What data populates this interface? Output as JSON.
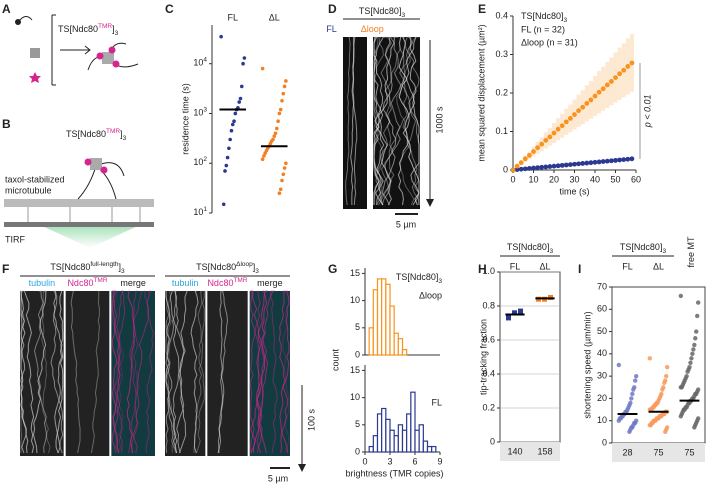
{
  "panel_labels": [
    "A",
    "B",
    "C",
    "D",
    "E",
    "F",
    "G",
    "H",
    "I"
  ],
  "A": {
    "label": [
      {
        "t": "TS[Ndc80"
      },
      {
        "t": "TMR",
        "pos": "sup",
        "color": "#d6248f"
      },
      {
        "t": "]"
      },
      {
        "t": "3",
        "pos": "sub"
      }
    ]
  },
  "B": {
    "label": [
      {
        "t": "TS[Ndc80"
      },
      {
        "t": "TMR",
        "pos": "sup",
        "color": "#d6248f"
      },
      {
        "t": "]"
      },
      {
        "t": "3",
        "pos": "sub"
      }
    ],
    "texts": [
      "taxol-stabilized",
      "microtubule",
      "TIRF"
    ]
  },
  "D": {
    "header": [
      {
        "t": "TS[Ndc80]"
      },
      {
        "t": "3",
        "pos": "sub"
      }
    ],
    "lanes": [
      {
        "t": "FL",
        "color": "#2b3990"
      },
      {
        "t": "Δloop",
        "color": "#f47f20"
      }
    ],
    "time_bar": "1000 s",
    "scale_bar": "5 µm"
  },
  "F": {
    "headers": [
      [
        {
          "t": "TS[Ndc80"
        },
        {
          "t": "full-length",
          "pos": "sup"
        },
        {
          "t": "]"
        },
        {
          "t": "3",
          "pos": "sub"
        }
      ],
      [
        {
          "t": "TS[Ndc80"
        },
        {
          "t": "Δloop",
          "pos": "sup"
        },
        {
          "t": "]"
        },
        {
          "t": "3",
          "pos": "sub"
        }
      ]
    ],
    "channels": [
      [
        {
          "t": "tubulin",
          "color": "#2aa7d8"
        }
      ],
      [
        {
          "t": "Ndc80",
          "color": "#d6248f"
        },
        {
          "t": "TMR",
          "pos": "sup",
          "color": "#d6248f"
        }
      ],
      [
        {
          "t": "merge"
        }
      ]
    ],
    "time_bar": "100 s",
    "scale_bar": "5 µm"
  },
  "chart_data": [
    {
      "type": "strip",
      "ylabel": "residence time (s)",
      "log": true,
      "ylim": [
        10,
        60000
      ],
      "yticks": [
        {
          "value": 10,
          "label": "10",
          "exp": "1"
        },
        {
          "value": 100,
          "label": "10",
          "exp": "2"
        },
        {
          "value": 1000,
          "label": "10",
          "exp": "3"
        },
        {
          "value": 10000,
          "label": "10",
          "exp": "4"
        }
      ],
      "series": [
        {
          "name": "FL",
          "color": "#2b3990",
          "median": 1200,
          "values": [
            35000,
            13000,
            10000,
            3500,
            2000,
            1700,
            1300,
            1200,
            1000,
            700,
            600,
            450,
            300,
            200,
            130,
            90,
            70,
            15
          ]
        },
        {
          "name": "ΔL",
          "color": "#f47f20",
          "median": 220,
          "values": [
            8000,
            4500,
            3500,
            2500,
            1800,
            1200,
            1000,
            700,
            500,
            400,
            350,
            300,
            280,
            250,
            220,
            200,
            180,
            160,
            140,
            120,
            100,
            80,
            60,
            45,
            30,
            25
          ]
        }
      ]
    },
    {
      "type": "line",
      "xlabel": "time (s)",
      "ylabel": "mean squared displacement (µm²)",
      "legend_title": [
        {
          "t": "TS[Ndc80]"
        },
        {
          "t": "3",
          "pos": "sub"
        }
      ],
      "annotation": "p < 0.01",
      "xlim": [
        0,
        60
      ],
      "xticks": [
        0,
        10,
        20,
        30,
        40,
        50,
        60
      ],
      "ylim": [
        0,
        0.4
      ],
      "yticks": [
        0,
        0.1,
        0.2,
        0.3,
        0.4
      ],
      "x": [
        0,
        2,
        4,
        6,
        8,
        10,
        12,
        14,
        16,
        18,
        20,
        22,
        24,
        26,
        28,
        30,
        32,
        34,
        36,
        38,
        40,
        42,
        44,
        46,
        48,
        50,
        52,
        54,
        56,
        58
      ],
      "series": [
        {
          "name": "FL (n = 32)",
          "color": "#2b3990",
          "values": [
            0,
            0.001,
            0.002,
            0.003,
            0.004,
            0.005,
            0.006,
            0.007,
            0.008,
            0.009,
            0.01,
            0.011,
            0.012,
            0.013,
            0.014,
            0.015,
            0.016,
            0.017,
            0.018,
            0.019,
            0.02,
            0.021,
            0.022,
            0.023,
            0.024,
            0.025,
            0.026,
            0.027,
            0.028,
            0.029
          ]
        },
        {
          "name": "Δloop (n = 31)",
          "color": "#f7931e",
          "values": [
            0,
            0.01,
            0.019,
            0.029,
            0.038,
            0.048,
            0.058,
            0.067,
            0.077,
            0.086,
            0.096,
            0.106,
            0.115,
            0.125,
            0.134,
            0.144,
            0.154,
            0.163,
            0.173,
            0.182,
            0.192,
            0.202,
            0.211,
            0.221,
            0.23,
            0.24,
            0.25,
            0.259,
            0.269,
            0.278
          ],
          "error": [
            0,
            0.003,
            0.005,
            0.008,
            0.01,
            0.013,
            0.016,
            0.018,
            0.021,
            0.023,
            0.026,
            0.029,
            0.031,
            0.034,
            0.036,
            0.039,
            0.042,
            0.044,
            0.047,
            0.049,
            0.052,
            0.055,
            0.057,
            0.06,
            0.062,
            0.065,
            0.068,
            0.07,
            0.073,
            0.075
          ]
        }
      ]
    },
    {
      "type": "histogram",
      "header": [
        {
          "t": "TS[Ndc80]"
        },
        {
          "t": "3",
          "pos": "sub"
        }
      ],
      "name": "Δloop",
      "color": "#f7931e",
      "bins": [
        0.5,
        1,
        1.5,
        2,
        2.5,
        3,
        3.5,
        4,
        4.5,
        5,
        5.5,
        6,
        6.5,
        7,
        7.5,
        8,
        8.5
      ],
      "counts": [
        5,
        12,
        14,
        14,
        13,
        9,
        4,
        3,
        1,
        0,
        0,
        0,
        0,
        0,
        0,
        0
      ],
      "xlim": [
        0,
        9
      ],
      "ylim": [
        0,
        16
      ],
      "yticks": [
        0,
        5,
        10,
        15
      ]
    },
    {
      "type": "histogram",
      "name": "FL",
      "color": "#2b3990",
      "ylabel": "count",
      "xlabel": "brightness (TMR copies)",
      "bins": [
        0.5,
        1,
        1.5,
        2,
        2.5,
        3,
        3.5,
        4,
        4.5,
        5,
        5.5,
        6,
        6.5,
        7,
        7.5,
        8,
        8.5
      ],
      "counts": [
        1,
        3,
        7,
        8,
        6,
        4,
        3,
        5,
        4,
        7,
        11,
        4,
        5,
        2,
        1,
        1
      ],
      "xlim": [
        0,
        9
      ],
      "xticks": [
        0,
        3,
        6,
        9
      ],
      "ylim": [
        0,
        16
      ],
      "yticks": [
        0,
        5,
        10,
        15
      ]
    },
    {
      "type": "strip",
      "header": [
        {
          "t": "TS[Ndc80]"
        },
        {
          "t": "3",
          "pos": "sub"
        }
      ],
      "ylabel": "tip-tracking fraction",
      "frame": true,
      "grid": true,
      "ylim": [
        0,
        1
      ],
      "yticks": [
        0,
        0.2,
        0.4,
        0.6,
        0.8,
        {
          "value": 1,
          "label": "1.0"
        }
      ],
      "n": [
        140,
        158
      ],
      "series": [
        {
          "name": "FL",
          "color": "#2b3990",
          "median": 0.75,
          "values": [
            0.73,
            0.76,
            0.77
          ]
        },
        {
          "name": "ΔL",
          "color": "#f47f20",
          "median": 0.845,
          "values": [
            0.84,
            0.84,
            0.85
          ]
        }
      ]
    },
    {
      "type": "strip",
      "header": [
        {
          "t": "TS[Ndc80]"
        },
        {
          "t": "3",
          "pos": "sub"
        }
      ],
      "ylabel": "shortening speed (µm/min)",
      "frame": true,
      "ylim": [
        0,
        70
      ],
      "yticks": [
        0,
        10,
        20,
        30,
        40,
        50,
        60,
        70
      ],
      "n": [
        28,
        75,
        75
      ],
      "series": [
        {
          "name": "FL",
          "color": "#6f79c2",
          "median": 13,
          "values": [
            35,
            30,
            28,
            25,
            24,
            22,
            20,
            18,
            17,
            16,
            15,
            14,
            14,
            13,
            13,
            12,
            12,
            11,
            11,
            10,
            10,
            9,
            9,
            8,
            7,
            7,
            6,
            5
          ]
        },
        {
          "name": "ΔL",
          "color": "#f79a5a",
          "median": 14,
          "values": [
            38,
            34,
            30,
            28,
            27,
            25,
            24,
            22,
            21,
            20,
            19,
            18,
            18,
            17,
            17,
            16,
            16,
            15,
            15,
            15,
            14,
            14,
            14,
            13,
            13,
            13,
            12,
            12,
            12,
            11,
            11,
            11,
            10,
            10,
            10,
            9,
            9,
            8,
            8,
            7,
            6,
            5
          ]
        },
        {
          "name": "free MT",
          "color": "#666666",
          "median": 19,
          "values": [
            66,
            63,
            57,
            50,
            47,
            44,
            42,
            40,
            38,
            36,
            34,
            33,
            32,
            30,
            29,
            28,
            27,
            26,
            25,
            25,
            24,
            23,
            22,
            22,
            21,
            20,
            20,
            19,
            19,
            18,
            18,
            17,
            16,
            16,
            15,
            15,
            14,
            13,
            12,
            11,
            10,
            9,
            8,
            7
          ]
        }
      ]
    }
  ]
}
